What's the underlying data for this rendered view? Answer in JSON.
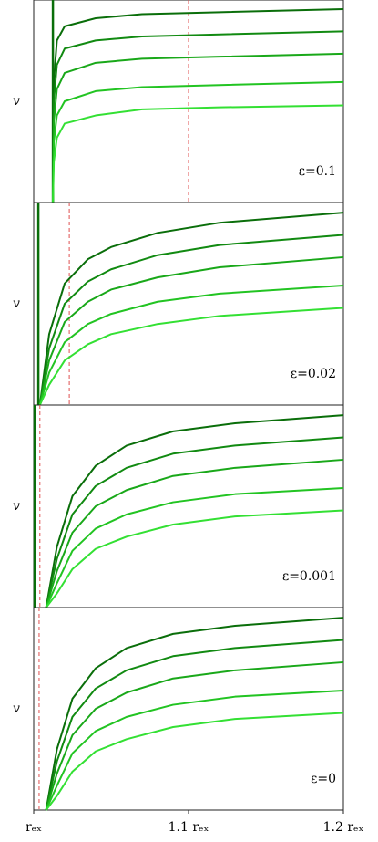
{
  "chart_data": [
    {
      "type": "line",
      "ylabel": "v",
      "annotation": "ε=0.1",
      "xlim": [
        1,
        1.2
      ],
      "ylim": [
        0,
        1
      ],
      "x": [
        1.0124,
        1.013,
        1.015,
        1.02,
        1.04,
        1.07,
        1.12,
        1.2
      ],
      "vlines": [
        {
          "x": 1.0124,
          "color": "#0a6e0a",
          "style": "solid"
        },
        {
          "x": 1.1,
          "color": "#e05050",
          "style": "dashed"
        }
      ],
      "series": [
        {
          "color": "#0a6e0a",
          "values": [
            0,
            0.6,
            0.8,
            0.87,
            0.91,
            0.93,
            0.94,
            0.955
          ]
        },
        {
          "color": "#118a11",
          "values": [
            0,
            0.5,
            0.68,
            0.76,
            0.8,
            0.82,
            0.83,
            0.845
          ]
        },
        {
          "color": "#19a819",
          "values": [
            0,
            0.4,
            0.56,
            0.64,
            0.69,
            0.71,
            0.72,
            0.735
          ]
        },
        {
          "color": "#22c422",
          "values": [
            0,
            0.3,
            0.43,
            0.5,
            0.55,
            0.57,
            0.58,
            0.595
          ]
        },
        {
          "color": "#33e033",
          "values": [
            0,
            0.2,
            0.32,
            0.39,
            0.43,
            0.46,
            0.47,
            0.48
          ]
        }
      ]
    },
    {
      "type": "line",
      "ylabel": "v",
      "annotation": "ε=0.02",
      "xlim": [
        1,
        1.2
      ],
      "ylim": [
        0,
        1
      ],
      "x": [
        1.004,
        1.01,
        1.02,
        1.035,
        1.05,
        1.08,
        1.12,
        1.2
      ],
      "vlines": [
        {
          "x": 1.003,
          "color": "#0a6e0a",
          "style": "solid"
        },
        {
          "x": 1.023,
          "color": "#e05050",
          "style": "dashed"
        }
      ],
      "series": [
        {
          "color": "#0a6e0a",
          "values": [
            0,
            0.35,
            0.6,
            0.72,
            0.78,
            0.85,
            0.9,
            0.95
          ]
        },
        {
          "color": "#118a11",
          "values": [
            0,
            0.28,
            0.5,
            0.61,
            0.67,
            0.74,
            0.79,
            0.84
          ]
        },
        {
          "color": "#19a819",
          "values": [
            0,
            0.22,
            0.41,
            0.51,
            0.57,
            0.63,
            0.68,
            0.73
          ]
        },
        {
          "color": "#22c422",
          "values": [
            0,
            0.16,
            0.31,
            0.4,
            0.45,
            0.51,
            0.55,
            0.59
          ]
        },
        {
          "color": "#33e033",
          "values": [
            0,
            0.1,
            0.22,
            0.3,
            0.35,
            0.4,
            0.44,
            0.48
          ]
        }
      ]
    },
    {
      "type": "line",
      "ylabel": "v",
      "annotation": "ε=0.001",
      "xlim": [
        1,
        1.2
      ],
      "ylim": [
        0,
        1
      ],
      "x": [
        1.008,
        1.015,
        1.025,
        1.04,
        1.06,
        1.09,
        1.13,
        1.2
      ],
      "vlines": [
        {
          "x": 1.0006,
          "color": "#0a6e0a",
          "style": "solid"
        },
        {
          "x": 1.004,
          "color": "#e05050",
          "style": "dashed"
        }
      ],
      "series": [
        {
          "color": "#0a6e0a",
          "values": [
            0,
            0.3,
            0.55,
            0.7,
            0.8,
            0.87,
            0.91,
            0.95
          ]
        },
        {
          "color": "#118a11",
          "values": [
            0,
            0.24,
            0.46,
            0.6,
            0.69,
            0.76,
            0.8,
            0.84
          ]
        },
        {
          "color": "#19a819",
          "values": [
            0,
            0.18,
            0.37,
            0.5,
            0.58,
            0.65,
            0.69,
            0.73
          ]
        },
        {
          "color": "#22c422",
          "values": [
            0,
            0.12,
            0.28,
            0.39,
            0.46,
            0.52,
            0.56,
            0.59
          ]
        },
        {
          "color": "#33e033",
          "values": [
            0,
            0.07,
            0.19,
            0.29,
            0.35,
            0.41,
            0.45,
            0.48
          ]
        }
      ]
    },
    {
      "type": "line",
      "ylabel": "v",
      "annotation": "ε=0",
      "xlim": [
        1,
        1.2
      ],
      "ylim": [
        0,
        1
      ],
      "x": [
        1.008,
        1.015,
        1.025,
        1.04,
        1.06,
        1.09,
        1.13,
        1.2
      ],
      "vlines": [
        {
          "x": 1.0035,
          "color": "#e05050",
          "style": "dashed"
        }
      ],
      "xticks": [
        {
          "value": 1,
          "label": "rₑₓ"
        },
        {
          "value": 1.1,
          "label": "1.1 rₑₓ"
        },
        {
          "value": 1.2,
          "label": "1.2 rₑₓ"
        }
      ],
      "series": [
        {
          "color": "#0a6e0a",
          "values": [
            0,
            0.3,
            0.55,
            0.7,
            0.8,
            0.87,
            0.91,
            0.95
          ]
        },
        {
          "color": "#118a11",
          "values": [
            0,
            0.24,
            0.46,
            0.6,
            0.69,
            0.76,
            0.8,
            0.84
          ]
        },
        {
          "color": "#19a819",
          "values": [
            0,
            0.18,
            0.37,
            0.5,
            0.58,
            0.65,
            0.69,
            0.73
          ]
        },
        {
          "color": "#22c422",
          "values": [
            0,
            0.12,
            0.28,
            0.39,
            0.46,
            0.52,
            0.56,
            0.59
          ]
        },
        {
          "color": "#33e033",
          "values": [
            0,
            0.07,
            0.19,
            0.29,
            0.35,
            0.41,
            0.45,
            0.48
          ]
        }
      ]
    }
  ]
}
